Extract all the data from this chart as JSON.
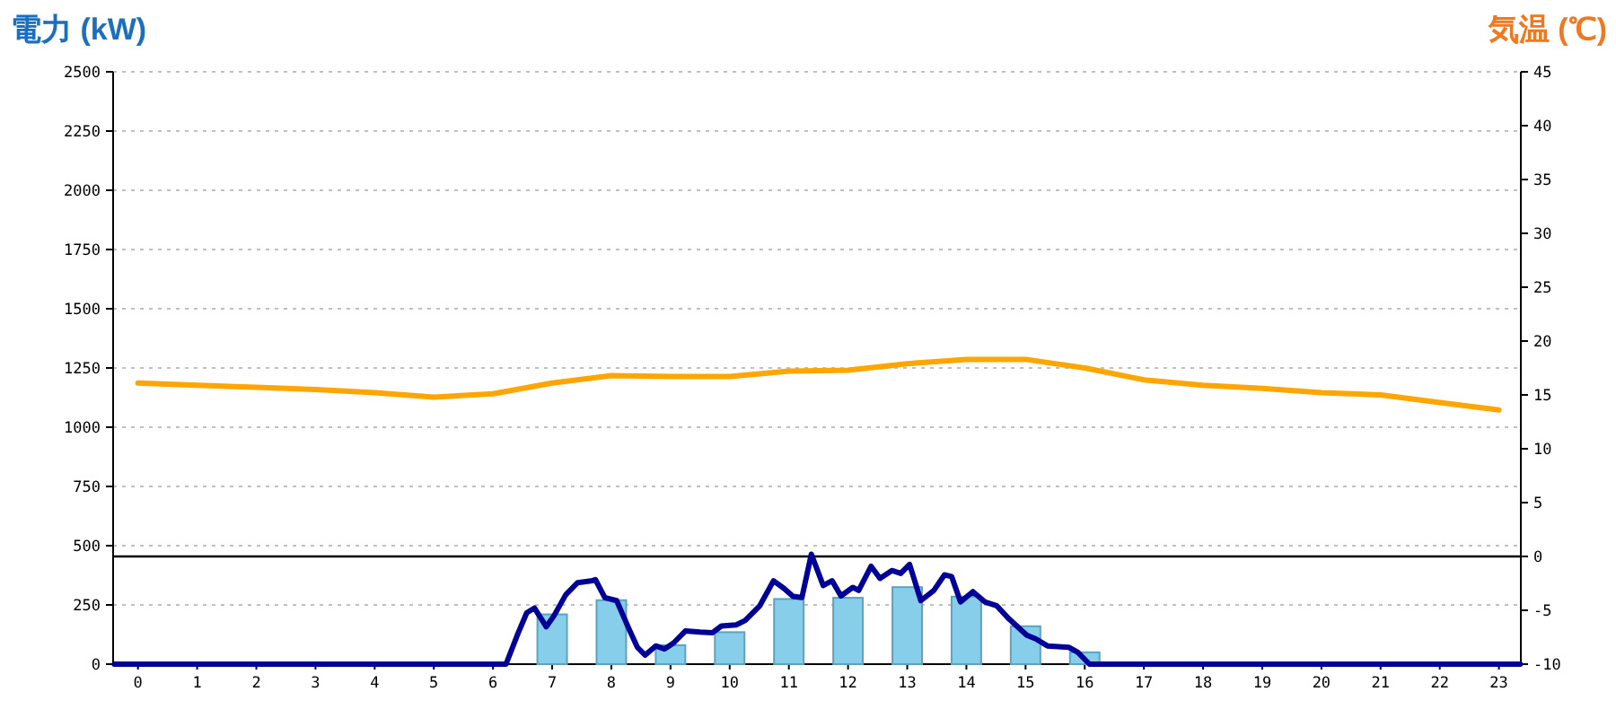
{
  "chart_data": {
    "type": "bar",
    "ylabel": "電力 (kW)",
    "y2label": "気温 (℃)",
    "x": [
      0,
      1,
      2,
      3,
      4,
      5,
      6,
      7,
      8,
      9,
      10,
      11,
      12,
      13,
      14,
      15,
      16,
      17,
      18,
      19,
      20,
      21,
      22,
      23
    ],
    "xlim": [
      -0.42,
      23.37
    ],
    "xticks": [
      0,
      1,
      2,
      3,
      4,
      5,
      6,
      7,
      8,
      9,
      10,
      11,
      12,
      13,
      14,
      15,
      16,
      17,
      18,
      19,
      20,
      21,
      22,
      23
    ],
    "series": [
      {
        "color": "#87ceeb",
        "values": [
          0,
          0,
          0,
          0,
          0,
          0,
          0,
          210,
          270,
          80,
          135,
          275,
          280,
          325,
          285,
          160,
          50,
          0,
          0,
          0,
          0,
          0,
          0,
          0
        ]
      },
      {
        "type": "line",
        "color": "#000099",
        "x": [
          -0.4,
          6.22,
          6.42,
          6.57,
          6.7,
          6.9,
          7.03,
          7.23,
          7.43,
          7.68,
          7.73,
          7.89,
          8.09,
          8.29,
          8.44,
          8.57,
          8.75,
          8.9,
          9.05,
          9.25,
          9.5,
          9.71,
          9.86,
          10.11,
          10.26,
          10.51,
          10.74,
          10.92,
          11.07,
          11.22,
          11.38,
          11.58,
          11.73,
          11.88,
          12.08,
          12.18,
          12.39,
          12.54,
          12.74,
          12.89,
          13.04,
          13.23,
          13.45,
          13.63,
          13.75,
          13.9,
          14.11,
          14.31,
          14.51,
          14.72,
          15.02,
          15.17,
          15.37,
          15.73,
          15.88,
          16.08,
          23.36
        ],
        "values": [
          0,
          0,
          128,
          217,
          237,
          158,
          204,
          293,
          344,
          352,
          357,
          281,
          268,
          153,
          71,
          38,
          77,
          64,
          89,
          140,
          135,
          133,
          161,
          166,
          184,
          247,
          352,
          319,
          286,
          281,
          464,
          332,
          352,
          288,
          324,
          311,
          413,
          362,
          395,
          383,
          421,
          268,
          311,
          377,
          370,
          263,
          306,
          263,
          247,
          191,
          122,
          107,
          77,
          71,
          51,
          0,
          0
        ]
      },
      {
        "type": "line",
        "axis": "y2",
        "color": "#ffa500",
        "values": [
          16.1,
          15.9,
          15.7,
          15.5,
          15.2,
          14.8,
          15.1,
          16.1,
          16.8,
          16.7,
          16.7,
          17.2,
          17.3,
          17.9,
          18.3,
          18.3,
          17.5,
          16.4,
          15.9,
          15.6,
          15.2,
          15.0,
          14.3,
          13.6
        ]
      }
    ],
    "ylim": [
      0,
      2500
    ],
    "yticks": [
      0,
      250,
      500,
      750,
      1000,
      1250,
      1500,
      1750,
      2000,
      2250,
      2500
    ],
    "y2lim": [
      -10,
      45
    ],
    "y2ticks": [
      -10,
      -5,
      0,
      5,
      10,
      15,
      20,
      25,
      30,
      35,
      40,
      45
    ],
    "grid": "y",
    "ref_lines": [
      {
        "axis": "y2",
        "value": 0,
        "color": "#000000"
      }
    ]
  }
}
